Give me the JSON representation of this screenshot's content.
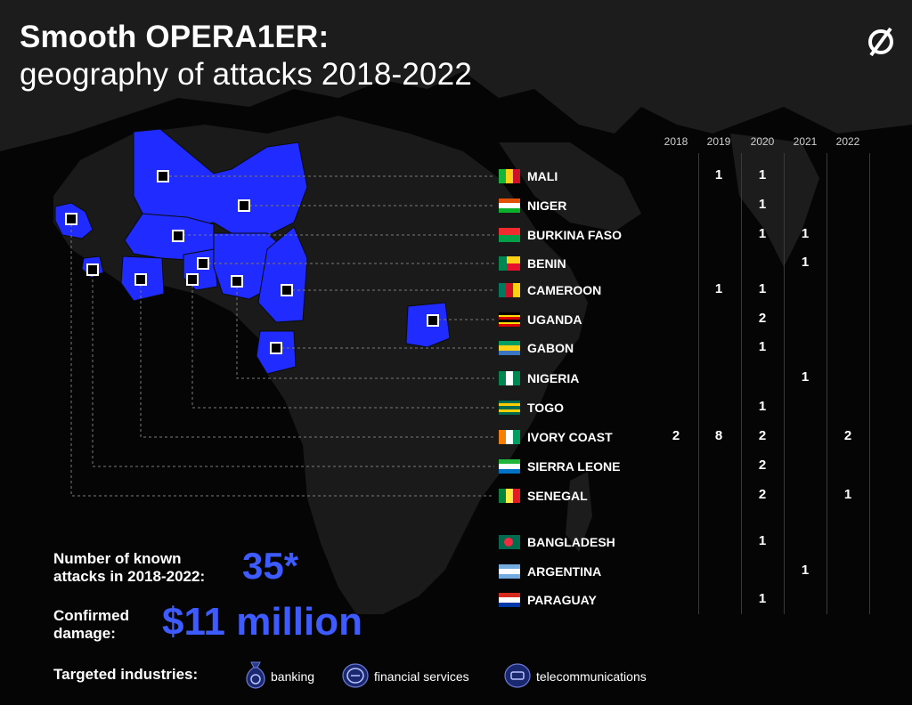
{
  "title": {
    "line1": "Smooth OPERA1ER:",
    "line2": "geography of attacks 2018-2022"
  },
  "logo": {
    "icon": "slashed-circle-logo-icon"
  },
  "years": [
    "2018",
    "2019",
    "2020",
    "2021",
    "2022"
  ],
  "countries": [
    {
      "name": "MALI",
      "counts": [
        "",
        "1",
        "1",
        "",
        ""
      ]
    },
    {
      "name": "NIGER",
      "counts": [
        "",
        "",
        "1",
        "",
        ""
      ]
    },
    {
      "name": "BURKINA FASO",
      "counts": [
        "",
        "",
        "1",
        "1",
        ""
      ]
    },
    {
      "name": "BENIN",
      "counts": [
        "",
        "",
        "",
        "1",
        ""
      ]
    },
    {
      "name": "CAMEROON",
      "counts": [
        "",
        "1",
        "1",
        "",
        ""
      ]
    },
    {
      "name": "UGANDA",
      "counts": [
        "",
        "",
        "2",
        "",
        ""
      ]
    },
    {
      "name": "GABON",
      "counts": [
        "",
        "",
        "1",
        "",
        ""
      ]
    },
    {
      "name": "NIGERIA",
      "counts": [
        "",
        "",
        "",
        "1",
        ""
      ]
    },
    {
      "name": "TOGO",
      "counts": [
        "",
        "",
        "1",
        "",
        ""
      ]
    },
    {
      "name": "IVORY COAST",
      "counts": [
        "2",
        "8",
        "2",
        "",
        "2"
      ]
    },
    {
      "name": "SIERRA LEONE",
      "counts": [
        "",
        "",
        "2",
        "",
        ""
      ]
    },
    {
      "name": "SENEGAL",
      "counts": [
        "",
        "",
        "2",
        "",
        "1"
      ]
    },
    {
      "name": "BANGLADESH",
      "counts": [
        "",
        "",
        "1",
        "",
        ""
      ]
    },
    {
      "name": "ARGENTINA",
      "counts": [
        "",
        "",
        "",
        "1",
        ""
      ]
    },
    {
      "name": "PARAGUAY",
      "counts": [
        "",
        "",
        "1",
        "",
        ""
      ]
    }
  ],
  "stats": {
    "attacks_label_line1": "Number of known",
    "attacks_label_line2": "attacks in 2018-2022:",
    "attacks_value": "35*",
    "damage_label_line1": "Confirmed",
    "damage_label_line2": "damage:",
    "damage_value": "$11 million"
  },
  "industries": {
    "label": "Targeted industries:",
    "items": [
      {
        "label": "banking",
        "icon": "money-bag-icon"
      },
      {
        "label": "financial services",
        "icon": "coin-icon"
      },
      {
        "label": "telecommunications",
        "icon": "phone-icon"
      }
    ]
  },
  "colors": {
    "accent_blue": "#1f2bff",
    "value_blue": "#3d5bff",
    "land": "#1b1b1b",
    "sea": "#050505"
  }
}
